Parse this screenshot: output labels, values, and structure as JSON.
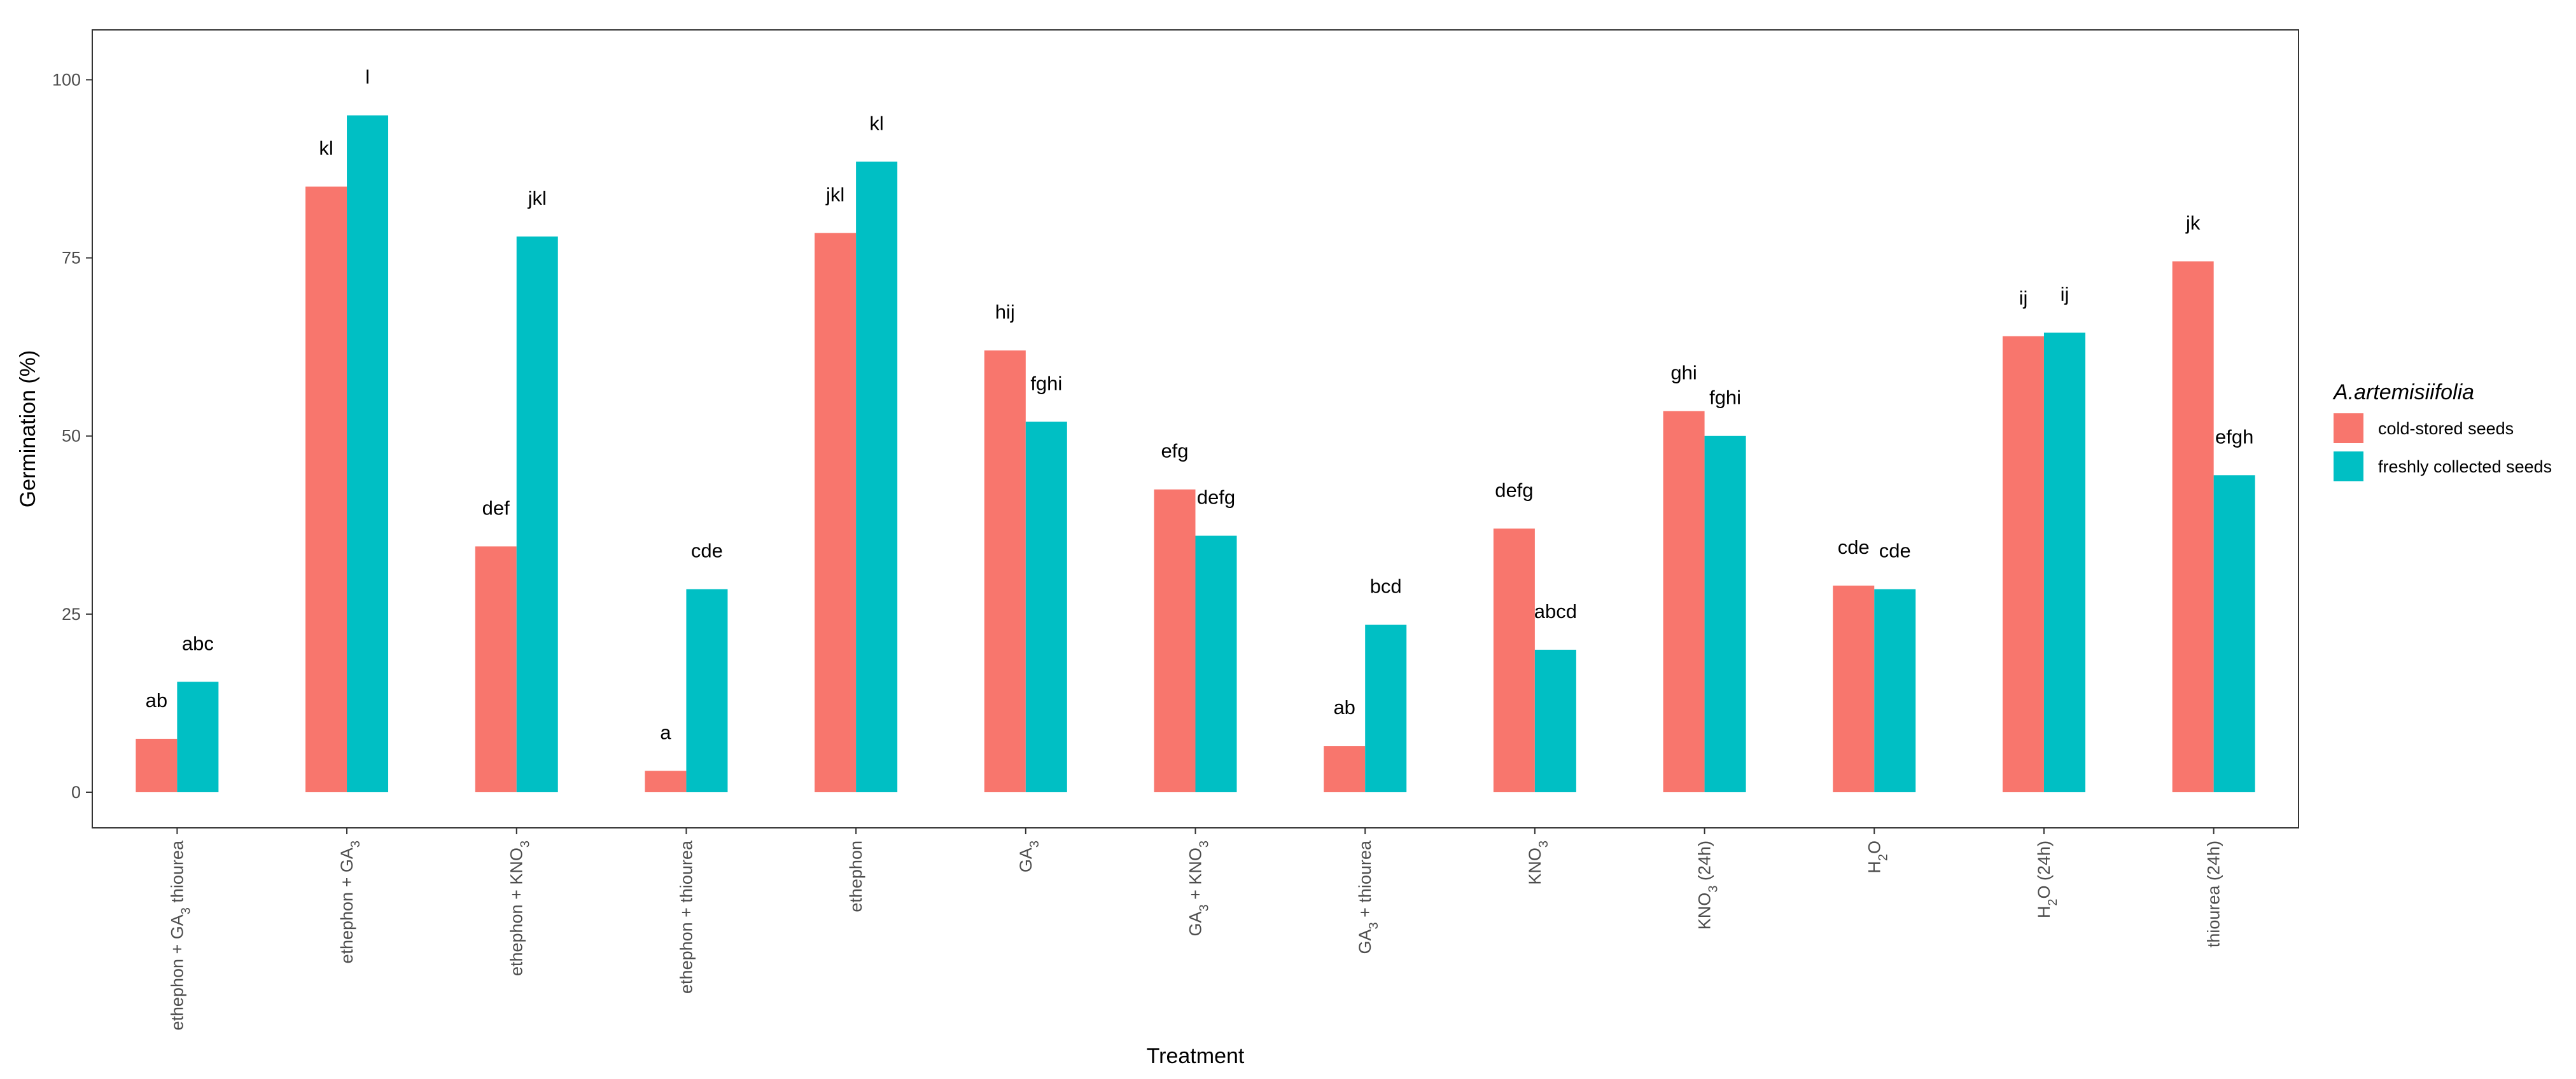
{
  "chart_data": {
    "type": "bar",
    "title": "",
    "xlabel": "Treatment",
    "ylabel": "Germination (%)",
    "ylim": [
      -5,
      107
    ],
    "yticks": [
      0,
      25,
      50,
      75,
      100
    ],
    "grid": false,
    "legend_position": "right",
    "legend_title": "A.artemisiifolia",
    "categories": [
      "ethephon + GA3 thiourea",
      "ethephon + GA3",
      "ethephon + KNO3",
      "ethephon + thiourea",
      "ethephon",
      "GA3",
      "GA3 + KNO3",
      "GA3 + thiourea",
      "KNO3",
      "KNO3 (24h)",
      "H2O",
      "H2O (24h)",
      "thiourea (24h)"
    ],
    "series": [
      {
        "name": "cold-stored seeds",
        "color": "#F8766D",
        "values": [
          7.5,
          85,
          34.5,
          3,
          78.5,
          62,
          42.5,
          6.5,
          37,
          53.5,
          29,
          64,
          74.5
        ],
        "labels": [
          "ab",
          "kl",
          "def",
          "a",
          "jkl",
          "hij",
          "efg",
          "ab",
          "defg",
          "ghi",
          "cde",
          "ij",
          "jk"
        ]
      },
      {
        "name": "freshly collected seeds",
        "color": "#00BFC4",
        "values": [
          15.5,
          95,
          78,
          28.5,
          88.5,
          52,
          36,
          23.5,
          20,
          50,
          28.5,
          64.5,
          44.5
        ],
        "labels": [
          "abc",
          "l",
          "jkl",
          "cde",
          "kl",
          "fghi",
          "defg",
          "bcd",
          "abcd",
          "fghi",
          "cde",
          "ij",
          "efgh"
        ]
      }
    ]
  }
}
